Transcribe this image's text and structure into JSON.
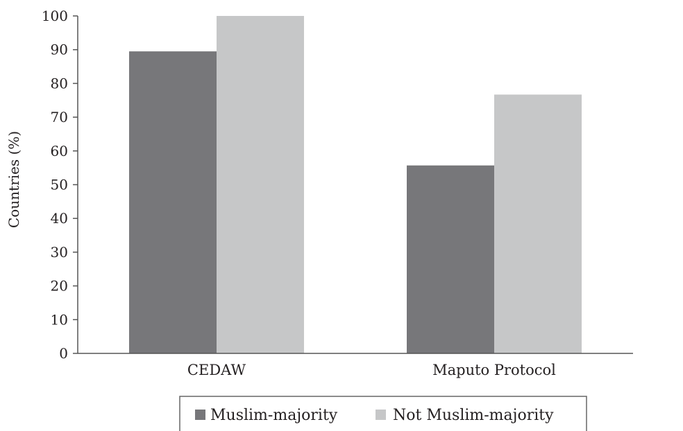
{
  "chart_data": {
    "type": "bar",
    "title": "",
    "xlabel": "",
    "ylabel": "Countries (%)",
    "ylim": [
      0,
      100
    ],
    "yticks": [
      0,
      10,
      20,
      30,
      40,
      50,
      60,
      70,
      80,
      90,
      100
    ],
    "categories": [
      "CEDAW",
      "Maputo Protocol"
    ],
    "series": [
      {
        "name": "Muslim-majority",
        "values": [
          89.5,
          55.7
        ],
        "color": "#77777a"
      },
      {
        "name": "Not Muslim-majority",
        "values": [
          100,
          76.7
        ],
        "color": "#c6c7c8"
      }
    ],
    "grid": false,
    "legend_position": "bottom"
  }
}
